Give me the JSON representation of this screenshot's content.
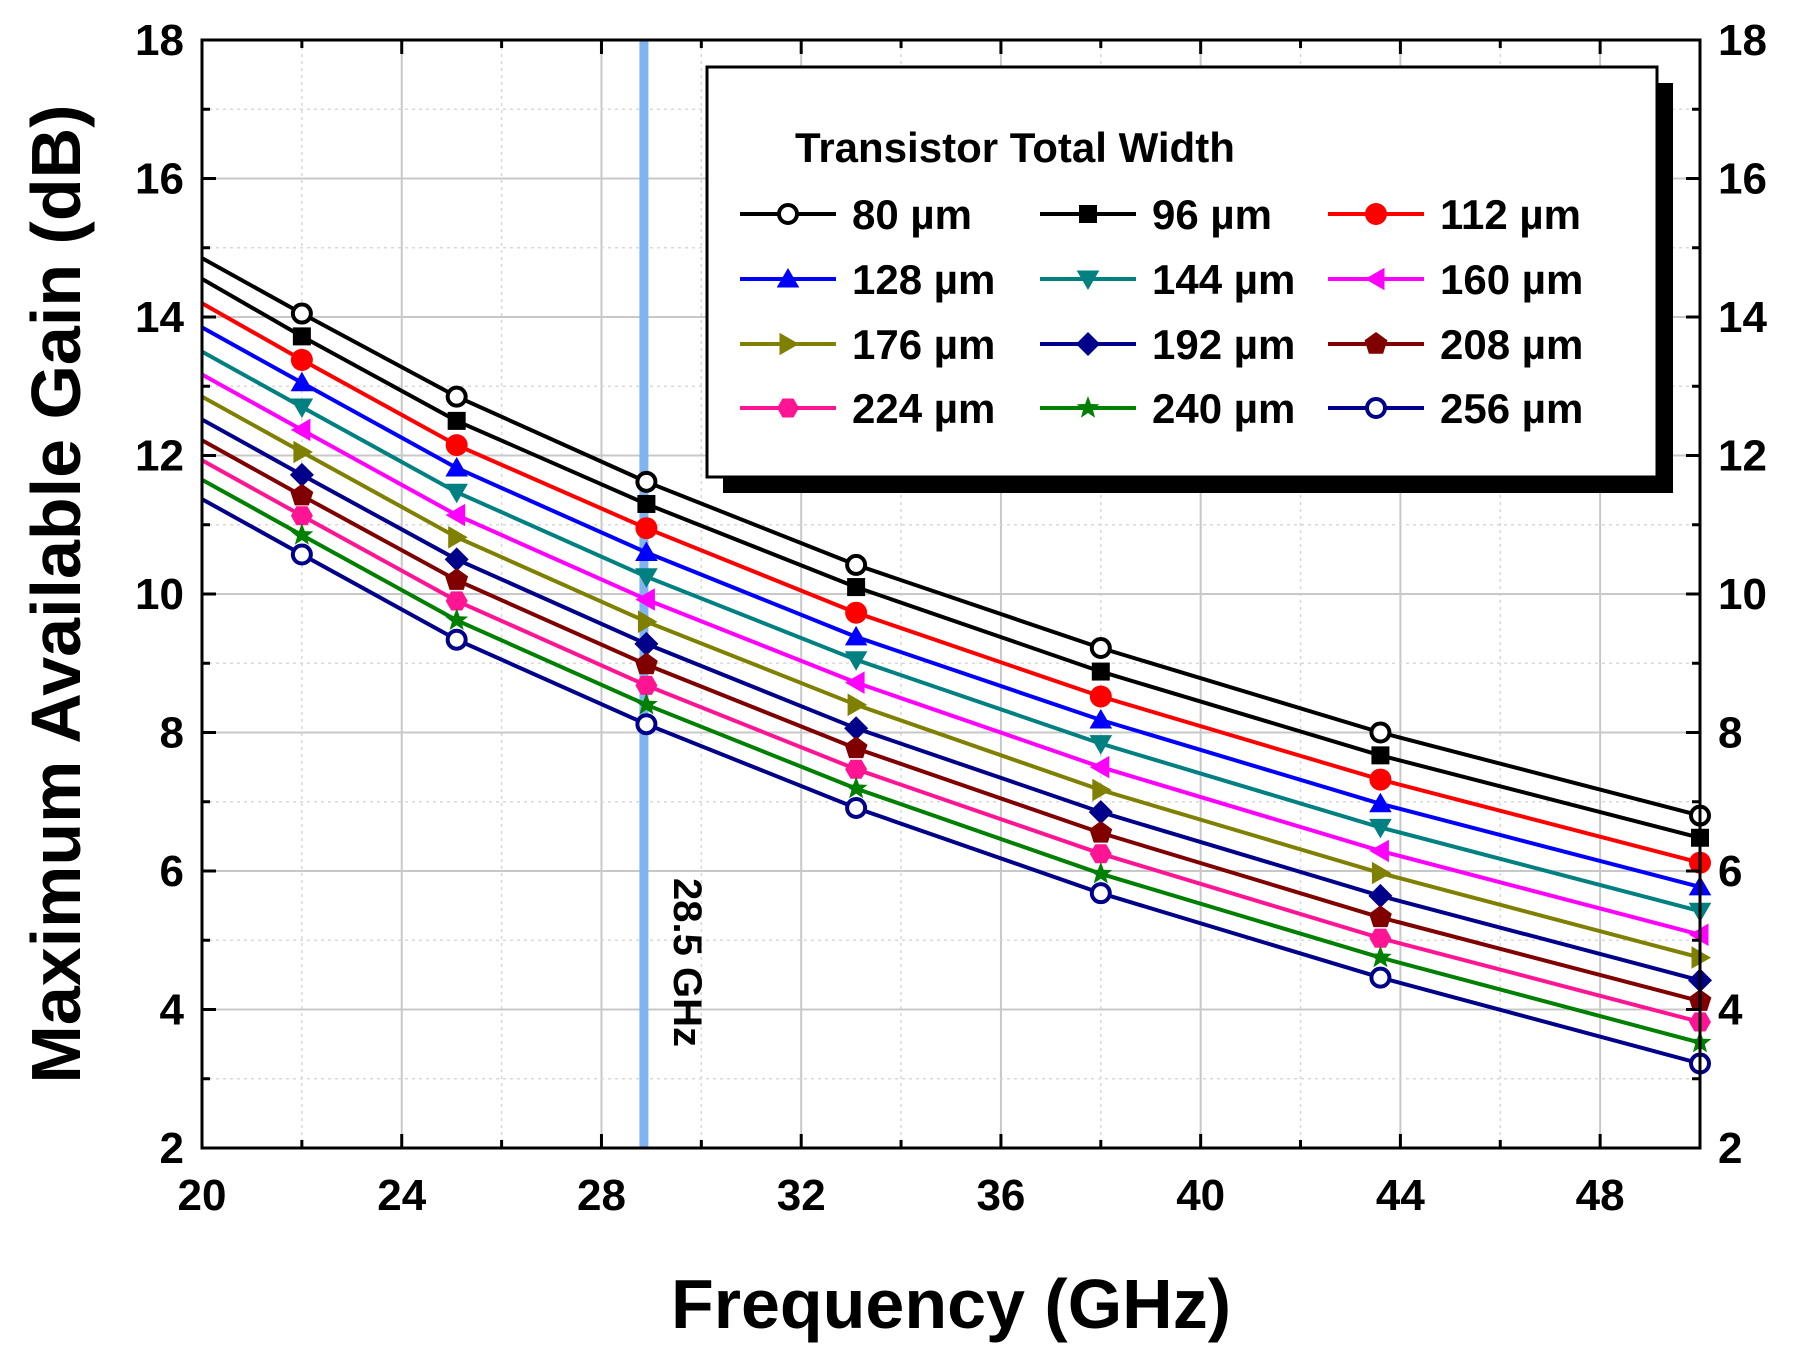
{
  "chart_data": {
    "type": "line",
    "title": "",
    "xlabel": "Frequency (GHz)",
    "ylabel": "Maximum Available Gain (dB)",
    "xlim": [
      20,
      50
    ],
    "ylim": [
      2,
      18
    ],
    "xticks": [
      20,
      24,
      28,
      32,
      36,
      40,
      44,
      48
    ],
    "yticks": [
      2,
      4,
      6,
      8,
      10,
      12,
      14,
      16,
      18
    ],
    "right_axis_ticks": true,
    "grid": true,
    "legend_title": "Transistor Total Width",
    "legend_position": "top-right",
    "x": [
      20,
      22,
      25.1,
      28.9,
      33.1,
      38,
      43.6,
      50
    ],
    "marker_x": [
      22,
      25.1,
      28.9,
      33.1,
      38,
      43.6,
      50
    ],
    "annotation": {
      "x": 28.85,
      "label": "28.5 GHz",
      "color": "#7fb4f0"
    },
    "series": [
      {
        "name": "80 µm",
        "color": "#000000",
        "marker": "circle-open",
        "values": [
          14.85,
          14.05,
          12.85,
          11.62,
          10.42,
          9.22,
          8.0,
          6.8
        ]
      },
      {
        "name": "96 µm",
        "color": "#000000",
        "marker": "square",
        "values": [
          14.55,
          13.72,
          12.5,
          11.3,
          10.1,
          8.88,
          7.67,
          6.48
        ]
      },
      {
        "name": "112 µm",
        "color": "#ff0000",
        "marker": "circle",
        "values": [
          14.2,
          13.38,
          12.15,
          10.95,
          9.73,
          8.52,
          7.32,
          6.12
        ]
      },
      {
        "name": "128 µm",
        "color": "#0000ff",
        "marker": "triangle-up",
        "values": [
          13.85,
          13.05,
          11.82,
          10.6,
          9.38,
          8.18,
          6.97,
          5.77
        ]
      },
      {
        "name": "144 µm",
        "color": "#008080",
        "marker": "triangle-down",
        "values": [
          13.5,
          12.7,
          11.47,
          10.25,
          9.05,
          7.84,
          6.63,
          5.42
        ]
      },
      {
        "name": "160 µm",
        "color": "#ff00ff",
        "marker": "triangle-left",
        "values": [
          13.17,
          12.37,
          11.14,
          9.92,
          8.72,
          7.5,
          6.29,
          5.08
        ]
      },
      {
        "name": "176 µm",
        "color": "#808000",
        "marker": "triangle-right",
        "values": [
          12.85,
          12.05,
          10.82,
          9.6,
          8.4,
          7.17,
          5.97,
          4.75
        ]
      },
      {
        "name": "192 µm",
        "color": "#00008b",
        "marker": "diamond",
        "values": [
          12.52,
          11.72,
          10.5,
          9.28,
          8.06,
          6.85,
          5.64,
          4.42
        ]
      },
      {
        "name": "208 µm",
        "color": "#800000",
        "marker": "pentagon",
        "values": [
          12.22,
          11.42,
          10.2,
          8.98,
          7.77,
          6.55,
          5.33,
          4.12
        ]
      },
      {
        "name": "224 µm",
        "color": "#ff1493",
        "marker": "hexagon",
        "values": [
          11.93,
          11.13,
          9.9,
          8.68,
          7.47,
          6.25,
          5.03,
          3.82
        ]
      },
      {
        "name": "240 µm",
        "color": "#008000",
        "marker": "star",
        "values": [
          11.65,
          10.85,
          9.62,
          8.4,
          7.19,
          5.96,
          4.75,
          3.52
        ]
      },
      {
        "name": "256 µm",
        "color": "#00008b",
        "marker": "circle-open",
        "values": [
          11.37,
          10.57,
          9.34,
          8.12,
          6.91,
          5.68,
          4.46,
          3.22
        ]
      }
    ]
  }
}
